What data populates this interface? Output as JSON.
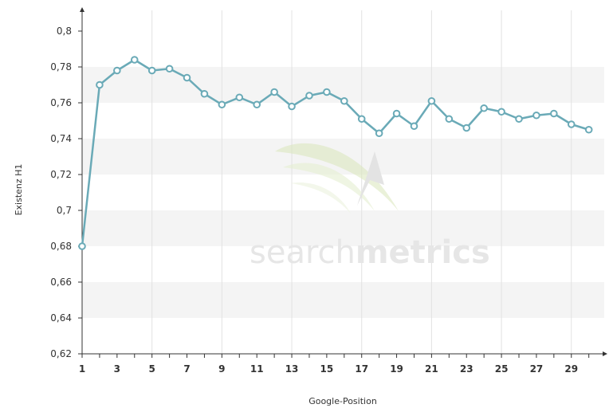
{
  "chart_data": {
    "type": "line",
    "xlabel": "Google-Position",
    "ylabel": "Existenz H1",
    "x_tick_labels": [
      "1",
      "3",
      "5",
      "7",
      "9",
      "11",
      "13",
      "15",
      "17",
      "19",
      "21",
      "23",
      "25",
      "27",
      "29"
    ],
    "y_tick_labels": [
      "0,62",
      "0,64",
      "0,66",
      "0,68",
      "0,7",
      "0,72",
      "0,74",
      "0,76",
      "0,78",
      "0,8"
    ],
    "xlim": [
      1,
      31
    ],
    "ylim": [
      0.62,
      0.8
    ],
    "grid": true,
    "series": [
      {
        "x": [
          1,
          2,
          3,
          4,
          5,
          6,
          7,
          8,
          9,
          10,
          11,
          12,
          13,
          14,
          15,
          16,
          17,
          18,
          19,
          20,
          21,
          22,
          23,
          24,
          25,
          26,
          27,
          28,
          29,
          30
        ],
        "values": [
          0.68,
          0.77,
          0.778,
          0.784,
          0.778,
          0.779,
          0.774,
          0.765,
          0.759,
          0.763,
          0.759,
          0.766,
          0.758,
          0.764,
          0.766,
          0.761,
          0.751,
          0.743,
          0.754,
          0.747,
          0.761,
          0.751,
          0.746,
          0.757,
          0.755,
          0.751,
          0.753,
          0.754,
          0.748,
          0.745
        ]
      }
    ]
  },
  "colors": {
    "line": "#6aaab7",
    "marker_fill": "#ffffff",
    "band": "#f4f4f4",
    "grid": "#e2e2e2",
    "axis": "#333333"
  },
  "watermark": {
    "brand_light": "search",
    "brand_bold": "metrics"
  }
}
